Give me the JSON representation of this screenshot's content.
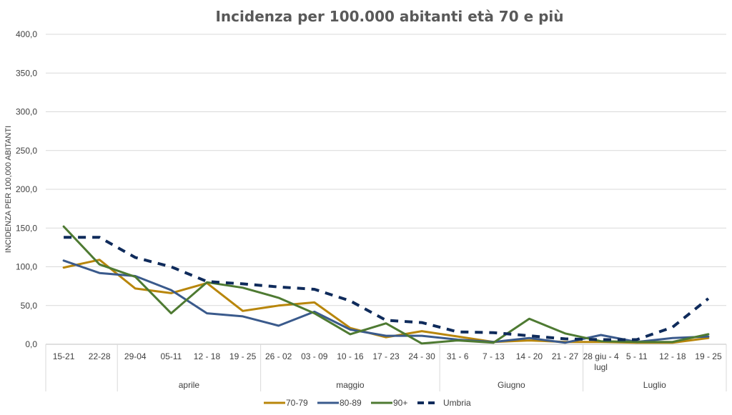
{
  "chart_data": {
    "type": "line",
    "title": "Incidenza per 100.000 abitanti età 70 e più",
    "ylabel": "INCIDENZA PER 100,000 ABITANTI",
    "ylim": [
      0,
      400
    ],
    "yticks": [
      "0,0",
      "50,0",
      "100,0",
      "150,0",
      "200,0",
      "250,0",
      "300,0",
      "350,0",
      "400,0"
    ],
    "categories": [
      "15-21",
      "22-28",
      "29-04",
      "05-11",
      "12 - 18",
      "19 - 25",
      "26 - 02",
      "03 - 09",
      "10 - 16",
      "17 - 23",
      "24 - 30",
      "31 - 6",
      "7 - 13",
      "14 - 20",
      "21 - 27",
      "28 giu - 4 lugl",
      "5 - 11",
      "12 - 18",
      "19 - 25"
    ],
    "category_lines": [
      [
        "15-21"
      ],
      [
        "22-28"
      ],
      [
        "29-04"
      ],
      [
        "05-11"
      ],
      [
        "12 - 18"
      ],
      [
        "19 - 25"
      ],
      [
        "26 - 02"
      ],
      [
        "03 - 09"
      ],
      [
        "10 - 16"
      ],
      [
        "17 - 23"
      ],
      [
        "24 - 30"
      ],
      [
        "31 - 6"
      ],
      [
        "7 - 13"
      ],
      [
        "14 - 20"
      ],
      [
        "21 - 27"
      ],
      [
        "28 giu - 4",
        "lugl"
      ],
      [
        "5 - 11"
      ],
      [
        "12 - 18"
      ],
      [
        "19 - 25"
      ]
    ],
    "groups": [
      {
        "label": "",
        "start": 0,
        "end": 1
      },
      {
        "label": "aprile",
        "start": 2,
        "end": 5
      },
      {
        "label": "maggio",
        "start": 6,
        "end": 10
      },
      {
        "label": "Giugno",
        "start": 11,
        "end": 14
      },
      {
        "label": "Luglio",
        "start": 15,
        "end": 18
      }
    ],
    "series": [
      {
        "name": "70-79",
        "color": "#B8860B",
        "dashed": false,
        "values": [
          99,
          109,
          72,
          66,
          79,
          43,
          50,
          54,
          21,
          9,
          17,
          10,
          3,
          5,
          3,
          3,
          2,
          2,
          8
        ]
      },
      {
        "name": "80-89",
        "color": "#3A5A8C",
        "dashed": false,
        "values": [
          108,
          92,
          88,
          70,
          40,
          36,
          24,
          42,
          19,
          11,
          11,
          6,
          3,
          8,
          2,
          12,
          3,
          8,
          10
        ]
      },
      {
        "name": "90+",
        "color": "#4E7A32",
        "dashed": false,
        "values": [
          152,
          103,
          87,
          40,
          80,
          73,
          60,
          40,
          13,
          27,
          1,
          5,
          2,
          33,
          14,
          4,
          3,
          3,
          13
        ]
      },
      {
        "name": "Umbria",
        "color": "#0F2B5B",
        "dashed": true,
        "values": [
          138,
          138,
          112,
          100,
          81,
          78,
          74,
          71,
          56,
          31,
          28,
          16,
          15,
          11,
          7,
          6,
          6,
          22,
          59
        ]
      }
    ],
    "grid": true,
    "legend": "bottom"
  }
}
